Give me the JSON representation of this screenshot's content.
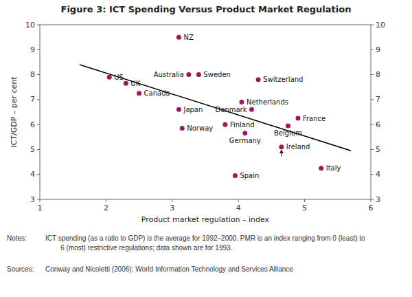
{
  "chart_data": {
    "type": "scatter",
    "title": "Figure 3: ICT Spending Versus Product Market Regulation",
    "xlabel": "Product market regulation – index",
    "ylabel": "ICT/GDP – per cent",
    "xlim": [
      1,
      6
    ],
    "ylim": [
      3,
      10
    ],
    "xticks": [
      1,
      2,
      3,
      4,
      5,
      6
    ],
    "yticks": [
      3,
      4,
      5,
      6,
      7,
      8,
      9,
      10
    ],
    "y2lim": [
      3,
      10
    ],
    "y2ticks": [
      3,
      4,
      5,
      6,
      7,
      8,
      9,
      10
    ],
    "grid": false,
    "color": "#9B1B5A",
    "point_labels": [
      "NZ",
      "US",
      "UK",
      "Canada",
      "Australia",
      "Sweden",
      "Switzerland",
      "Netherlands",
      "Japan",
      "Denmark",
      "Finland",
      "Norway",
      "France",
      "Belgium",
      "Germany",
      "Ireland",
      "Spain",
      "Italy"
    ],
    "x": [
      3.1,
      2.05,
      2.3,
      2.5,
      3.25,
      3.4,
      4.3,
      4.05,
      3.1,
      4.2,
      3.8,
      3.15,
      4.9,
      4.75,
      4.1,
      4.65,
      3.95,
      5.25
    ],
    "values": [
      9.5,
      7.9,
      7.65,
      7.25,
      8.0,
      8.0,
      7.8,
      6.9,
      6.6,
      6.6,
      6.0,
      5.85,
      6.25,
      5.95,
      5.65,
      5.1,
      3.95,
      4.25
    ],
    "trend_line": {
      "x": [
        1.6,
        5.7
      ],
      "values": [
        8.4,
        4.95
      ],
      "color": "#000000"
    },
    "arrows": [
      {
        "x": 4.65,
        "y_start": 4.72,
        "y_end": 5.1
      }
    ],
    "notes_label": "Notes:",
    "notes_text": "ICT spending (as a ratio to GDP) is the average for 1992–2000. PMR is an index ranging from 0 (least) to\n        6 (most) restrictive regulations; data shown are for 1993.",
    "sources_label": "Sources:",
    "sources_text": "Conway and Nicoletti (2006); World Information Technology and Services Alliance"
  }
}
